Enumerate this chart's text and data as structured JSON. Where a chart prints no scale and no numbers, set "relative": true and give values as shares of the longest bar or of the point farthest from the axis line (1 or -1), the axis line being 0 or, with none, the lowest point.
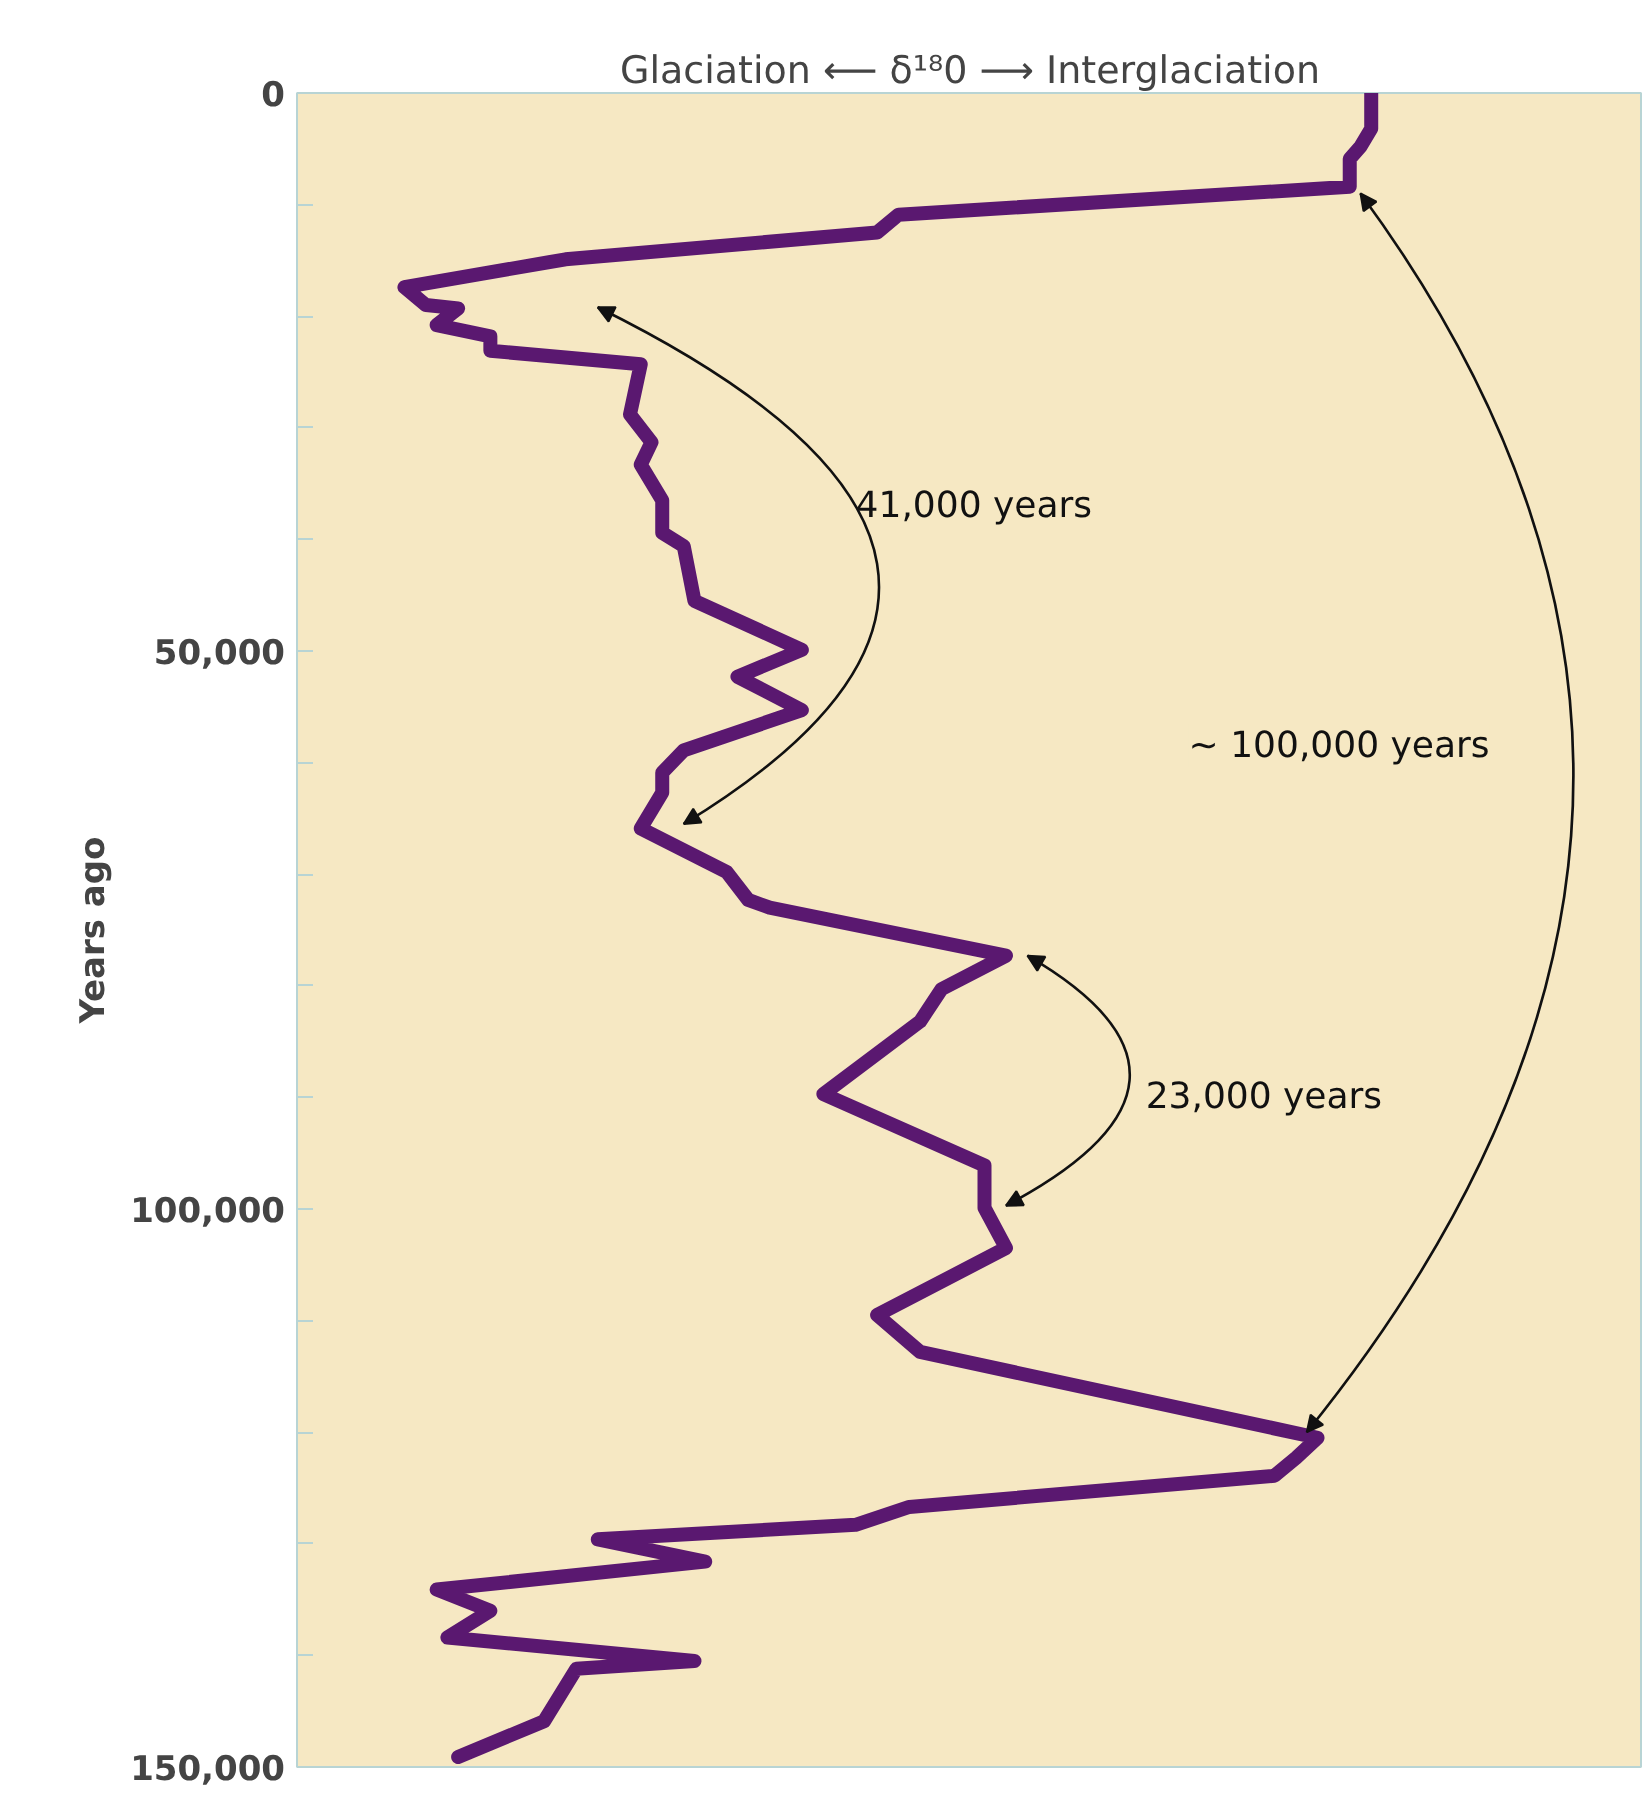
{
  "chart_data": {
    "type": "line",
    "orientation": "horizontal",
    "relative": true,
    "xlabel": "Glaciation ⟵ δ¹⁸0 ⟶ Interglaciation",
    "ylabel": "Years ago",
    "ylim": [
      150000,
      0
    ],
    "yticks": [
      0,
      {
        "value": 10000,
        "label": null
      },
      {
        "value": 20000,
        "label": null
      },
      {
        "value": 30000,
        "label": null
      },
      {
        "value": 40000,
        "label": null
      },
      {
        "value": 50000,
        "label": "50,000"
      },
      {
        "value": 60000,
        "label": null
      },
      {
        "value": 70000,
        "label": null
      },
      {
        "value": 80000,
        "label": null
      },
      {
        "value": 90000,
        "label": null
      },
      {
        "value": 100000,
        "label": "100,000"
      },
      {
        "value": 110000,
        "label": null
      },
      {
        "value": 120000,
        "label": null
      },
      {
        "value": 130000,
        "label": null
      },
      {
        "value": 140000,
        "label": null
      },
      {
        "value": 150000,
        "label": "150,000"
      }
    ],
    "grid": false,
    "annotations": [
      "41,000 years",
      "23,000 years",
      "~ 100,000 years"
    ],
    "series": [
      {
        "color": "#5a1870",
        "x": [
          0,
          3200,
          4800,
          5900,
          8400,
          10900,
          12500,
          14900,
          17400,
          19000,
          19300,
          20800,
          21800,
          23100,
          24300,
          28800,
          31300,
          33300,
          36500,
          39400,
          40600,
          45500,
          49900,
          52300,
          55300,
          58900,
          60900,
          62700,
          65900,
          69800,
          72300,
          73000,
          77300,
          80300,
          83200,
          89700,
          96100,
          99900,
          103500,
          109500,
          112800,
          120500,
          122300,
          123900,
          126700,
          128300,
          129600,
          131600,
          134100,
          136000,
          138400,
          140500,
          141200,
          145900,
          149100
        ],
        "values": [
          1.0,
          1.0,
          0.99,
          0.98,
          0.98,
          0.56,
          0.54,
          0.25,
          0.1,
          0.12,
          0.15,
          0.13,
          0.18,
          0.18,
          0.32,
          0.31,
          0.33,
          0.32,
          0.34,
          0.34,
          0.36,
          0.37,
          0.47,
          0.41,
          0.47,
          0.36,
          0.34,
          0.34,
          0.32,
          0.4,
          0.42,
          0.44,
          0.66,
          0.6,
          0.58,
          0.49,
          0.64,
          0.64,
          0.66,
          0.54,
          0.58,
          0.95,
          0.93,
          0.91,
          0.57,
          0.52,
          0.28,
          0.38,
          0.13,
          0.18,
          0.14,
          0.37,
          0.26,
          0.23,
          0.15
        ]
      }
    ]
  }
}
